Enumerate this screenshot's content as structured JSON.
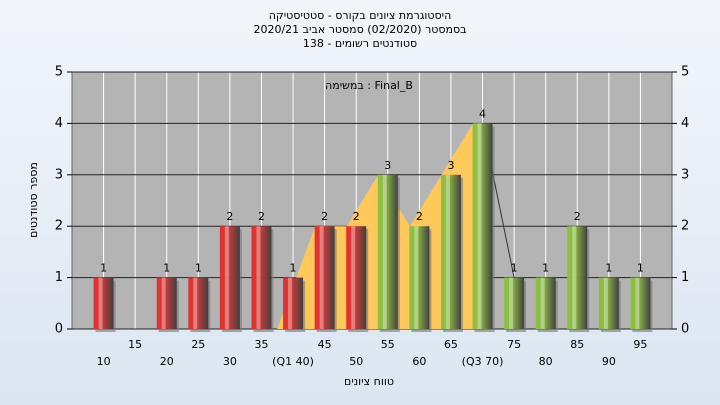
{
  "chart_data": {
    "type": "bar",
    "title": [
      "היסטוגרמת ציונים בקורס - סטטיסטיקה",
      "בסמסטר  (02/2020)  סמסטר אביב 2020/21",
      "סטודנטים רשומים - 138"
    ],
    "annotation": "במשימה : Final_B",
    "x_label": "טווח ציונים",
    "y_label": "מספר סטודנטים",
    "categories": [
      10,
      15,
      20,
      25,
      30,
      35,
      "(Q1 40)",
      45,
      50,
      55,
      60,
      65,
      "(Q3 70)",
      75,
      80,
      85,
      90,
      95
    ],
    "values": [
      1,
      0,
      1,
      1,
      2,
      2,
      1,
      2,
      2,
      3,
      2,
      3,
      4,
      1,
      1,
      2,
      1,
      1
    ],
    "bar_colors": [
      "#e03030",
      "#e03030",
      "#e03030",
      "#e03030",
      "#e03030",
      "#e03030",
      "#e03030",
      "#e03030",
      "#e03030",
      "#8cbf40",
      "#8cbf40",
      "#8cbf40",
      "#8cbf40",
      "#8cbf40",
      "#8cbf40",
      "#8cbf40",
      "#8cbf40",
      "#8cbf40"
    ],
    "quartile_color": "#ffc85a",
    "ylim": [
      0,
      5
    ],
    "yticks": [
      0,
      1,
      2,
      3,
      4,
      5
    ],
    "grid": true
  }
}
